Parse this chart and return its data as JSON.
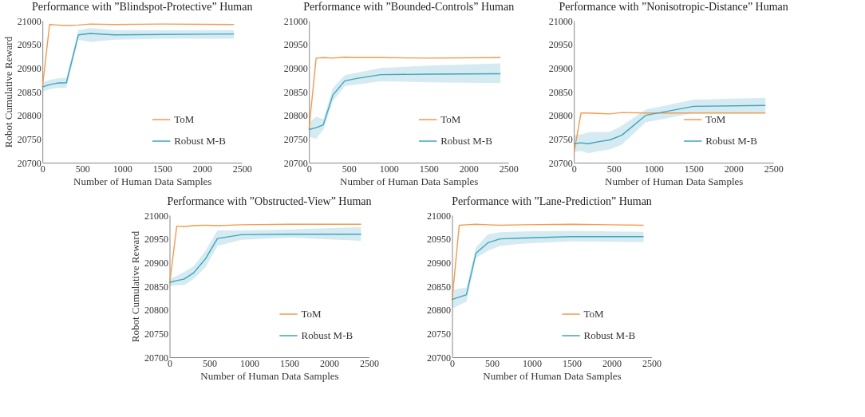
{
  "chart_data": [
    {
      "type": "line",
      "title": "Performance with ”Blindspot-Protective” Human",
      "xlabel": "Number of Human Data Samples",
      "ylabel": "Robot Cumulative Reward",
      "x": [
        0,
        90,
        180,
        300,
        450,
        600,
        900,
        1500,
        2400
      ],
      "xlim": [
        0,
        2500
      ],
      "xticks": [
        0,
        500,
        1000,
        1500,
        2000,
        2500
      ],
      "ylim": [
        20700,
        21000
      ],
      "yticks": [
        20700,
        20750,
        20800,
        20850,
        20900,
        20950,
        21000
      ],
      "legend": "bottom right",
      "series": [
        {
          "name": "ToM",
          "color": "#f39a4c",
          "values": [
            20860,
            20992,
            20991,
            20990,
            20991,
            20993,
            20992,
            20993,
            20992
          ]
        },
        {
          "name": "Robust M-B",
          "color": "#3fa4bd",
          "values": [
            20860,
            20865,
            20868,
            20869,
            20970,
            20973,
            20970,
            20971,
            20972
          ],
          "lower": [
            20850,
            20855,
            20858,
            20858,
            20960,
            20955,
            20960,
            20962,
            20962
          ],
          "upper": [
            20870,
            20875,
            20878,
            20880,
            20980,
            20985,
            20980,
            20980,
            20980
          ]
        }
      ]
    },
    {
      "type": "line",
      "title": "Performance with ”Bounded-Controls” Human",
      "xlabel": "Number of Human Data Samples",
      "x": [
        0,
        90,
        180,
        300,
        450,
        600,
        900,
        1500,
        2400
      ],
      "xlim": [
        0,
        2500
      ],
      "xticks": [
        0,
        500,
        1000,
        1500,
        2000,
        2500
      ],
      "ylim": [
        20700,
        21000
      ],
      "yticks": [
        20700,
        20750,
        20800,
        20850,
        20900,
        20950,
        21000
      ],
      "legend": "bottom right",
      "series": [
        {
          "name": "ToM",
          "color": "#f39a4c",
          "values": [
            20770,
            20921,
            20922,
            20921,
            20923,
            20922,
            20922,
            20921,
            20922
          ]
        },
        {
          "name": "Robust M-B",
          "color": "#3fa4bd",
          "values": [
            20770,
            20774,
            20780,
            20843,
            20873,
            20878,
            20886,
            20887,
            20888
          ],
          "lower": [
            20755,
            20750,
            20770,
            20830,
            20862,
            20865,
            20872,
            20870,
            20868
          ],
          "upper": [
            20785,
            20797,
            20792,
            20858,
            20885,
            20890,
            20900,
            20905,
            20910
          ]
        }
      ]
    },
    {
      "type": "line",
      "title": "Performance with ”Nonisotropic-Distance” Human",
      "xlabel": "Number of Human Data Samples",
      "x": [
        0,
        90,
        180,
        300,
        450,
        600,
        900,
        1500,
        2400
      ],
      "xlim": [
        0,
        2500
      ],
      "xticks": [
        0,
        500,
        1000,
        1500,
        2000,
        2500
      ],
      "ylim": [
        20700,
        21000
      ],
      "yticks": [
        20700,
        20750,
        20800,
        20850,
        20900,
        20950,
        21000
      ],
      "legend": "bottom right",
      "series": [
        {
          "name": "ToM",
          "color": "#f39a4c",
          "values": [
            20720,
            20805,
            20805,
            20804,
            20803,
            20806,
            20805,
            20805,
            20805
          ]
        },
        {
          "name": "Robust M-B",
          "color": "#3fa4bd",
          "values": [
            20740,
            20742,
            20740,
            20744,
            20748,
            20758,
            20800,
            20819,
            20821
          ],
          "lower": [
            20722,
            20725,
            20720,
            20724,
            20728,
            20738,
            20785,
            20805,
            20805
          ],
          "upper": [
            20758,
            20760,
            20764,
            20765,
            20765,
            20778,
            20812,
            20833,
            20837
          ]
        }
      ]
    },
    {
      "type": "line",
      "title": "Performance with ”Obstructed-View” Human",
      "xlabel": "Number of Human Data Samples",
      "ylabel": "Robot Cumulative Reward",
      "x": [
        0,
        90,
        180,
        300,
        450,
        600,
        900,
        1500,
        2400
      ],
      "xlim": [
        0,
        2500
      ],
      "xticks": [
        0,
        500,
        1000,
        1500,
        2000,
        2500
      ],
      "ylim": [
        20700,
        21000
      ],
      "yticks": [
        20700,
        20750,
        20800,
        20850,
        20900,
        20950,
        21000
      ],
      "legend": "bottom right",
      "series": [
        {
          "name": "ToM",
          "color": "#f39a4c",
          "values": [
            20855,
            20977,
            20976,
            20978,
            20979,
            20978,
            20980,
            20981,
            20981
          ]
        },
        {
          "name": "Robust M-B",
          "color": "#3fa4bd",
          "values": [
            20858,
            20862,
            20865,
            20878,
            20908,
            20951,
            20959,
            20960,
            20960
          ],
          "lower": [
            20850,
            20852,
            20852,
            20865,
            20890,
            20935,
            20948,
            20953,
            20946
          ],
          "upper": [
            20866,
            20872,
            20880,
            20892,
            20925,
            20968,
            20968,
            20970,
            20975
          ]
        }
      ]
    },
    {
      "type": "line",
      "title": "Performance with ”Lane-Prediction” Human",
      "xlabel": "Number of Human Data Samples",
      "x": [
        0,
        90,
        180,
        300,
        450,
        600,
        900,
        1500,
        2400
      ],
      "xlim": [
        0,
        2500
      ],
      "xticks": [
        0,
        500,
        1000,
        1500,
        2000,
        2500
      ],
      "ylim": [
        20700,
        21000
      ],
      "yticks": [
        20700,
        20750,
        20800,
        20850,
        20900,
        20950,
        21000
      ],
      "legend": "bottom right",
      "series": [
        {
          "name": "ToM",
          "color": "#f39a4c",
          "values": [
            20820,
            20979,
            20980,
            20981,
            20980,
            20979,
            20980,
            20981,
            20979
          ]
        },
        {
          "name": "Robust M-B",
          "color": "#3fa4bd",
          "values": [
            20822,
            20827,
            20832,
            20920,
            20942,
            20950,
            20952,
            20955,
            20955
          ],
          "lower": [
            20803,
            20810,
            20817,
            20910,
            20925,
            20935,
            20940,
            20945,
            20943
          ],
          "upper": [
            20842,
            20845,
            20847,
            20932,
            20960,
            20964,
            20966,
            20967,
            20965
          ]
        }
      ]
    }
  ]
}
